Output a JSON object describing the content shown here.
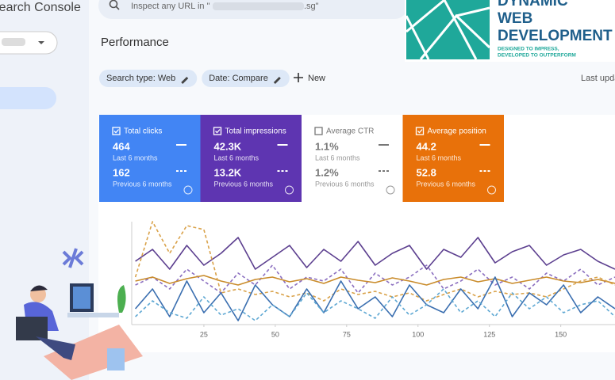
{
  "header": {
    "app_title": "Search Console",
    "search_prefix": "Inspect any URL in \"",
    "search_suffix": ".sg\""
  },
  "page_title": "Performance",
  "filters": [
    "Search type: Web",
    "Date: Compare"
  ],
  "new_button": "New",
  "last_updated": "Last update",
  "metrics": [
    {
      "label": "Total clicks",
      "current": "464",
      "current_period": "Last 6 months",
      "previous": "162",
      "previous_period": "Previous 6 months",
      "color": "#4285f4",
      "checked": true
    },
    {
      "label": "Total impressions",
      "current": "42.3K",
      "current_period": "Last 6 months",
      "previous": "13.2K",
      "previous_period": "Previous 6 months",
      "color": "#5e35b1",
      "checked": true
    },
    {
      "label": "Average CTR",
      "current": "1.1%",
      "current_period": "Last 6 months",
      "previous": "1.2%",
      "previous_period": "Previous 6 months",
      "color": "#ffffff",
      "checked": false
    },
    {
      "label": "Average position",
      "current": "44.2",
      "current_period": "Last 6 months",
      "previous": "52.8",
      "previous_period": "Previous 6 months",
      "color": "#e8710a",
      "checked": true
    }
  ],
  "chart_data": {
    "type": "line",
    "xlim": [
      0,
      169
    ],
    "xticks": [
      25,
      50,
      75,
      100,
      125,
      150
    ],
    "x": [
      1,
      7,
      13,
      19,
      25,
      31,
      37,
      43,
      49,
      55,
      61,
      67,
      73,
      79,
      85,
      91,
      97,
      103,
      109,
      115,
      121,
      127,
      133,
      139,
      145,
      151,
      157,
      163,
      169
    ],
    "series": [
      {
        "color": "#5c3f8f",
        "dashed": false,
        "values": [
          80,
          95,
          70,
          100,
          75,
          90,
          110,
          70,
          85,
          100,
          72,
          95,
          80,
          105,
          75,
          90,
          100,
          70,
          95,
          85,
          110,
          78,
          92,
          100,
          75,
          88,
          95,
          80,
          70
        ]
      },
      {
        "color": "#8b6fc0",
        "dashed": true,
        "values": [
          50,
          60,
          45,
          70,
          55,
          40,
          65,
          50,
          75,
          45,
          60,
          55,
          70,
          40,
          65,
          50,
          60,
          75,
          45,
          55,
          70,
          50,
          60,
          45,
          65,
          55,
          70,
          50,
          60
        ]
      },
      {
        "color": "#c98b2a",
        "dashed": false,
        "values": [
          55,
          60,
          52,
          58,
          62,
          55,
          50,
          57,
          60,
          54,
          58,
          52,
          60,
          56,
          53,
          59,
          55,
          50,
          57,
          60,
          54,
          58,
          52,
          56,
          60,
          55,
          53,
          57,
          52
        ]
      },
      {
        "color": "#d9a24a",
        "dashed": true,
        "values": [
          60,
          130,
          90,
          125,
          120,
          40,
          45,
          38,
          42,
          35,
          40,
          30,
          45,
          38,
          42,
          35,
          40,
          30,
          38,
          45,
          35,
          42,
          38,
          40,
          35,
          45,
          55,
          60,
          50
        ]
      },
      {
        "color": "#3b6fb0",
        "dashed": false,
        "values": [
          20,
          45,
          10,
          55,
          15,
          40,
          5,
          50,
          25,
          10,
          45,
          15,
          55,
          20,
          35,
          10,
          50,
          25,
          15,
          45,
          20,
          60,
          10,
          40,
          25,
          50,
          15,
          35,
          20
        ]
      },
      {
        "color": "#5fa8d3",
        "dashed": true,
        "values": [
          10,
          30,
          15,
          8,
          35,
          12,
          20,
          5,
          25,
          10,
          40,
          15,
          30,
          20,
          8,
          35,
          12,
          25,
          45,
          15,
          30,
          10,
          40,
          20,
          35,
          15,
          25,
          30,
          10
        ]
      }
    ]
  },
  "logo": {
    "line1": "DYNAMIC",
    "line2": "WEB",
    "line3": "DEVELOPMENT",
    "tagline1": "DESIGNED TO IMPRESS,",
    "tagline2": "DEVELOPED TO OUTPERFORM"
  }
}
